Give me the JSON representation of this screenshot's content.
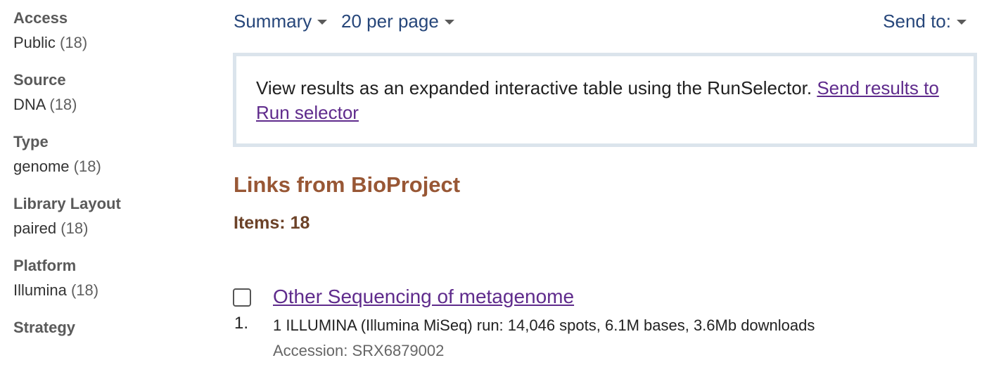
{
  "sidebar": {
    "facets": [
      {
        "title": "Access",
        "value": "Public",
        "count": "(18)"
      },
      {
        "title": "Source",
        "value": "DNA",
        "count": "(18)"
      },
      {
        "title": "Type",
        "value": "genome",
        "count": "(18)"
      },
      {
        "title": "Library Layout",
        "value": "paired",
        "count": "(18)"
      },
      {
        "title": "Platform",
        "value": "Illumina",
        "count": "(18)"
      },
      {
        "title": "Strategy"
      }
    ]
  },
  "toolbar": {
    "format_label": "Summary",
    "per_page_label": "20 per page",
    "send_to_label": "Send to:"
  },
  "infobox": {
    "text": "View results as an expanded interactive table using the RunSelector. ",
    "link": "Send results to Run selector"
  },
  "heading": "Links from BioProject",
  "items_label": "Items: 18",
  "results": [
    {
      "number": "1.",
      "title": "Other Sequencing of metagenome",
      "description": "1 ILLUMINA (Illumina MiSeq) run: 14,046 spots, 6.1M bases, 3.6Mb downloads",
      "accession": "Accession: SRX6879002"
    }
  ],
  "colors": {
    "link": "#5f2b8c",
    "toolbar_link": "#26467a",
    "heading": "#985735",
    "infobox_border": "#dbe4ec"
  }
}
